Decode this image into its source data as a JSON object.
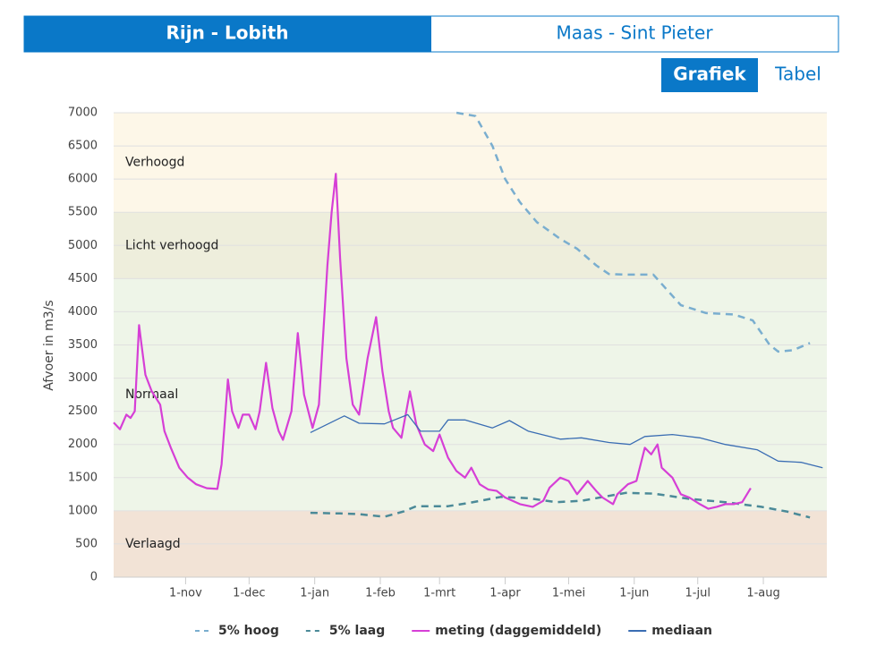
{
  "tabs": [
    "Rijn - Lobith",
    "Maas - Sint Pieter"
  ],
  "view_buttons": [
    "Grafiek",
    "Tabel"
  ],
  "chart_data": {
    "type": "line",
    "y_label": "Afvoer in m3/s",
    "ylim": [
      0,
      7000
    ],
    "yticks": [
      0,
      500,
      1000,
      1500,
      2000,
      2500,
      3000,
      3500,
      4000,
      4500,
      5000,
      5500,
      6000,
      6500,
      7000
    ],
    "xlim": [
      -34,
      303
    ],
    "xticks": [
      {
        "value": 0,
        "label": "1-nov"
      },
      {
        "value": 30,
        "label": "1-dec"
      },
      {
        "value": 61,
        "label": "1-jan"
      },
      {
        "value": 92,
        "label": "1-feb"
      },
      {
        "value": 120,
        "label": "1-mrt"
      },
      {
        "value": 151,
        "label": "1-apr"
      },
      {
        "value": 181,
        "label": "1-mei"
      },
      {
        "value": 212,
        "label": "1-jun"
      },
      {
        "value": 242,
        "label": "1-jul"
      },
      {
        "value": 273,
        "label": "1-aug"
      }
    ],
    "grid": true,
    "bands": [
      {
        "label": "Verhoogd",
        "from": 5500,
        "to": 7000,
        "color": "#fdf7e8"
      },
      {
        "label": "Licht verhoogd",
        "from": 4500,
        "to": 5500,
        "color": "#eeeedc"
      },
      {
        "label": "Normaal",
        "from": 1000,
        "to": 4500,
        "color": "#eef5e8"
      },
      {
        "label": "Verlaagd",
        "from": 0,
        "to": 1000,
        "color": "#f2e3d6"
      }
    ],
    "series": [
      {
        "name": "5% hoog",
        "color": "#7aaecf",
        "dashed": true,
        "x": [
          128,
          137,
          145,
          151,
          158,
          166,
          177,
          185,
          194,
          200,
          208,
          221,
          234,
          246,
          259,
          268,
          276,
          280,
          287,
          295
        ],
        "values": [
          7000,
          6950,
          6500,
          6000,
          5650,
          5350,
          5100,
          4950,
          4700,
          4570,
          4560,
          4560,
          4100,
          3980,
          3960,
          3870,
          3500,
          3400,
          3420,
          3530
        ]
      },
      {
        "name": "5% laag",
        "color": "#4b8a98",
        "dashed": true,
        "x": [
          59,
          73,
          82,
          94,
          103,
          109,
          124,
          134,
          149,
          162,
          175,
          187,
          208,
          221,
          238,
          255,
          272,
          284,
          295
        ],
        "values": [
          970,
          960,
          950,
          910,
          990,
          1070,
          1070,
          1120,
          1210,
          1190,
          1130,
          1150,
          1270,
          1260,
          1180,
          1130,
          1060,
          990,
          900
        ]
      },
      {
        "name": "meting (daggemiddeld)",
        "color": "#d63fd6",
        "dashed": false,
        "x": [
          -34,
          -31,
          -28,
          -26,
          -24,
          -22,
          -21,
          -19,
          -16,
          -12,
          -10,
          -7,
          -3,
          1,
          5,
          10,
          15,
          17,
          20,
          22,
          25,
          27,
          30,
          33,
          35,
          38,
          41,
          44,
          46,
          50,
          53,
          56,
          60,
          63,
          67,
          69,
          71,
          73,
          76,
          79,
          82,
          86,
          90,
          93,
          96,
          98,
          102,
          106,
          109,
          113,
          117,
          120,
          124,
          128,
          132,
          135,
          139,
          143,
          147,
          151,
          158,
          164,
          169,
          172,
          177,
          181,
          185,
          190,
          194,
          197,
          202,
          204,
          209,
          213,
          217,
          220,
          223,
          225,
          230,
          234,
          238,
          243,
          247,
          251,
          255,
          259,
          263,
          267
        ],
        "values": [
          2330,
          2230,
          2450,
          2400,
          2500,
          3800,
          3550,
          3050,
          2800,
          2600,
          2200,
          1950,
          1650,
          1500,
          1400,
          1340,
          1330,
          1700,
          2980,
          2500,
          2250,
          2450,
          2450,
          2230,
          2500,
          3230,
          2550,
          2200,
          2070,
          2500,
          3680,
          2750,
          2250,
          2600,
          4700,
          5500,
          6080,
          4800,
          3300,
          2600,
          2450,
          3300,
          3920,
          3100,
          2500,
          2250,
          2100,
          2800,
          2300,
          2000,
          1900,
          2150,
          1800,
          1600,
          1500,
          1650,
          1400,
          1320,
          1300,
          1200,
          1100,
          1060,
          1150,
          1350,
          1500,
          1450,
          1250,
          1450,
          1300,
          1200,
          1100,
          1250,
          1400,
          1450,
          1950,
          1850,
          2000,
          1650,
          1500,
          1250,
          1200,
          1100,
          1030,
          1060,
          1100,
          1100,
          1130,
          1340
        ]
      },
      {
        "name": "mediaan",
        "color": "#3a6db3",
        "dashed": false,
        "x": [
          59,
          75,
          82,
          94,
          105,
          111,
          120,
          124,
          132,
          145,
          153,
          162,
          177,
          187,
          200,
          210,
          217,
          230,
          243,
          255,
          270,
          280,
          291,
          301
        ],
        "values": [
          2180,
          2430,
          2320,
          2310,
          2450,
          2200,
          2200,
          2370,
          2370,
          2250,
          2360,
          2200,
          2080,
          2100,
          2030,
          2000,
          2120,
          2150,
          2100,
          2000,
          1920,
          1750,
          1730,
          1650
        ]
      }
    ]
  }
}
